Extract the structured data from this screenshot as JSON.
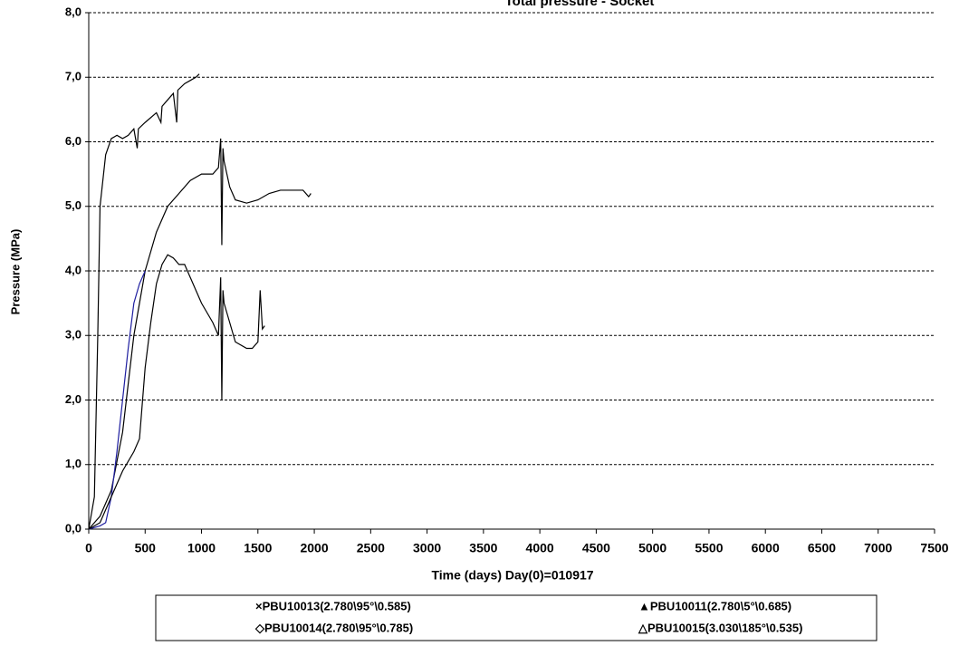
{
  "chart_data": {
    "type": "line",
    "title": "Total pressure - Socket",
    "x_label": "Time  (days)  Day(0)=010917",
    "y_label": "Pressure (MPa)",
    "xlim": [
      0,
      7500
    ],
    "xticks": [
      0,
      500,
      1000,
      1500,
      2000,
      2500,
      3000,
      3500,
      4000,
      4500,
      5000,
      5500,
      6000,
      6500,
      7000,
      7500
    ],
    "ylim": [
      0,
      8
    ],
    "yticks": [
      {
        "value": 0,
        "label": "0,0"
      },
      {
        "value": 1,
        "label": "1,0"
      },
      {
        "value": 2,
        "label": "2,0"
      },
      {
        "value": 3,
        "label": "3,0"
      },
      {
        "value": 4,
        "label": "4,0"
      },
      {
        "value": 5,
        "label": "5,0"
      },
      {
        "value": 6,
        "label": "6,0"
      },
      {
        "value": 7,
        "label": "7,0"
      },
      {
        "value": 8,
        "label": "8,0"
      }
    ],
    "grid": true,
    "series": [
      {
        "name": "×PBU10013(2.780\\95°\\0.585)",
        "color": "#000000",
        "x": [
          0,
          50,
          80,
          100,
          150,
          200,
          250,
          300,
          350,
          400,
          430,
          440,
          500,
          600,
          640,
          650,
          700,
          750,
          780,
          790,
          850,
          900,
          950,
          980
        ],
        "values": [
          0,
          0.5,
          3,
          5,
          5.8,
          6.05,
          6.1,
          6.05,
          6.1,
          6.2,
          5.9,
          6.2,
          6.3,
          6.45,
          6.3,
          6.55,
          6.65,
          6.75,
          6.3,
          6.8,
          6.9,
          6.95,
          7.0,
          7.05
        ]
      },
      {
        "name": "▲PBU10011(2.780\\5°\\0.685)",
        "color": "#000000",
        "x": [
          0,
          100,
          200,
          300,
          400,
          500,
          600,
          700,
          800,
          900,
          1000,
          1100,
          1150,
          1170,
          1180,
          1190,
          1200,
          1250,
          1300,
          1400,
          1500,
          1600,
          1700,
          1800,
          1900,
          1950,
          1970
        ],
        "values": [
          0,
          0.2,
          0.6,
          1.5,
          3.0,
          4.0,
          4.6,
          5.0,
          5.2,
          5.4,
          5.5,
          5.5,
          5.6,
          6.05,
          4.4,
          5.9,
          5.7,
          5.3,
          5.1,
          5.05,
          5.1,
          5.2,
          5.25,
          5.25,
          5.25,
          5.15,
          5.2
        ]
      },
      {
        "name": "◇PBU10014(2.780\\95°\\0.785)",
        "color": "#1f1fa0",
        "x": [
          0,
          100,
          150,
          200,
          250,
          300,
          350,
          400,
          450,
          500
        ],
        "values": [
          0,
          0.05,
          0.1,
          0.5,
          1.2,
          2.0,
          2.8,
          3.5,
          3.8,
          4.0
        ]
      },
      {
        "name": "△PBU10015(3.030\\185°\\0.535)",
        "color": "#000000",
        "x": [
          0,
          100,
          200,
          300,
          400,
          450,
          500,
          550,
          600,
          650,
          700,
          750,
          800,
          850,
          900,
          1000,
          1100,
          1150,
          1170,
          1180,
          1190,
          1200,
          1250,
          1300,
          1400,
          1450,
          1500,
          1520,
          1540,
          1560
        ],
        "values": [
          0,
          0.1,
          0.5,
          0.9,
          1.2,
          1.4,
          2.5,
          3.2,
          3.8,
          4.1,
          4.25,
          4.2,
          4.1,
          4.1,
          3.9,
          3.5,
          3.2,
          3.0,
          3.9,
          2.0,
          3.7,
          3.5,
          3.2,
          2.9,
          2.8,
          2.8,
          2.9,
          3.7,
          3.1,
          3.15
        ]
      }
    ]
  }
}
